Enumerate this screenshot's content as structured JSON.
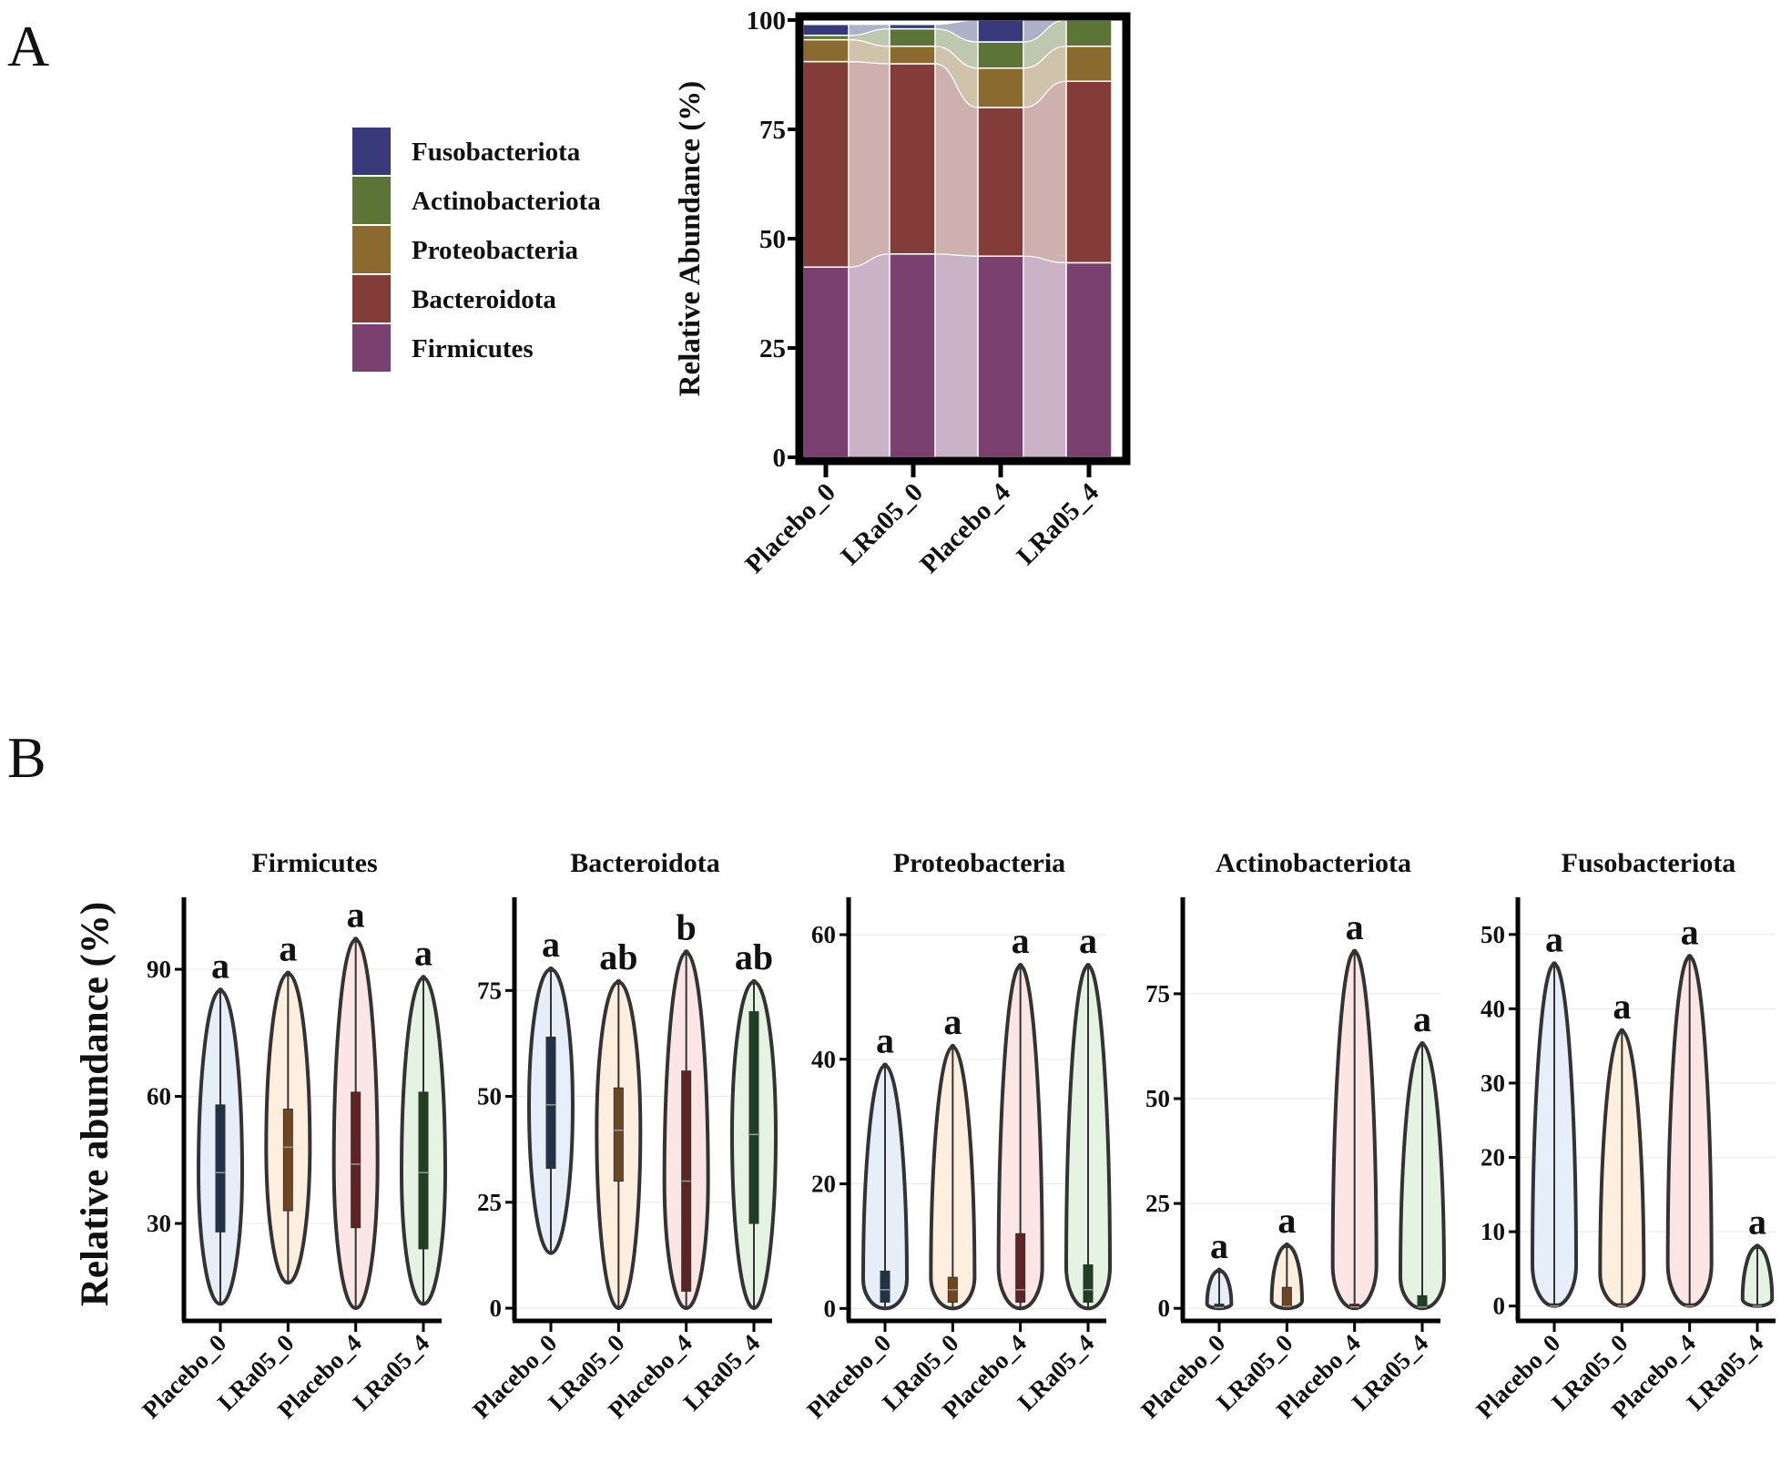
{
  "panels": {
    "a_label": "A",
    "b_label": "B"
  },
  "colors": {
    "Fusobacteriota": "#363a7a",
    "Actinobacteriota": "#5c7537",
    "Proteobacteria": "#8a6a2f",
    "Bacteroidota": "#843c38",
    "Firmicutes": "#7a4070",
    "violin_fill": [
      "#e6eef9",
      "#fdeedd",
      "#fbe5e5",
      "#e5f3e3"
    ],
    "box_fill": [
      "#1f3347",
      "#6e4720",
      "#5e2424",
      "#1f3f22"
    ]
  },
  "chart_data": [
    {
      "type": "bar",
      "stacked": true,
      "title": "",
      "ylabel": "Relative Abundance (%)",
      "xlabel": "",
      "ylim": [
        0,
        100
      ],
      "yticks": [
        "0",
        "25",
        "50",
        "75",
        "100"
      ],
      "categories": [
        "Placebo_0",
        "LRa05_0",
        "Placebo_4",
        "LRa05_4"
      ],
      "legend": [
        "Fusobacteriota",
        "Actinobacteriota",
        "Proteobacteria",
        "Bacteroidota",
        "Firmicutes"
      ],
      "legend_position": "left",
      "series": [
        {
          "name": "Firmicutes",
          "values": [
            43.5,
            46.5,
            46,
            44.5
          ]
        },
        {
          "name": "Bacteroidota",
          "values": [
            47,
            43.5,
            34,
            41.5
          ]
        },
        {
          "name": "Proteobacteria",
          "values": [
            5,
            4,
            9,
            8
          ]
        },
        {
          "name": "Actinobacteriota",
          "values": [
            1,
            4,
            6,
            6
          ]
        },
        {
          "name": "Fusobacteriota",
          "values": [
            2.5,
            1,
            5,
            0
          ]
        }
      ]
    },
    {
      "type": "violin",
      "ylabel": "Relative abundance (%)",
      "categories": [
        "Placebo_0",
        "LRa05_0",
        "Placebo_4",
        "LRa05_4"
      ],
      "facets": [
        {
          "title": "Firmicutes",
          "ylim": [
            7,
            107
          ],
          "yticks": [
            "30",
            "60",
            "90"
          ],
          "letters": [
            "a",
            "a",
            "a",
            "a"
          ],
          "groups": [
            {
              "min": 11,
              "max": 85,
              "q1": 28,
              "median": 42,
              "q3": 58
            },
            {
              "min": 16,
              "max": 89,
              "q1": 33,
              "median": 48,
              "q3": 57
            },
            {
              "min": 10,
              "max": 97,
              "q1": 29,
              "median": 44,
              "q3": 61
            },
            {
              "min": 11,
              "max": 88,
              "q1": 24,
              "median": 42,
              "q3": 61
            }
          ]
        },
        {
          "title": "Bacteroidota",
          "ylim": [
            -3,
            97
          ],
          "yticks": [
            "0",
            "25",
            "50",
            "75"
          ],
          "letters": [
            "a",
            "ab",
            "b",
            "ab"
          ],
          "groups": [
            {
              "min": 13,
              "max": 80,
              "q1": 33,
              "median": 48,
              "q3": 64
            },
            {
              "min": 0,
              "max": 77,
              "q1": 30,
              "median": 42,
              "q3": 52
            },
            {
              "min": 0,
              "max": 84,
              "q1": 4,
              "median": 30,
              "q3": 56
            },
            {
              "min": 0,
              "max": 77,
              "q1": 20,
              "median": 41,
              "q3": 70
            }
          ]
        },
        {
          "title": "Proteobacteria",
          "ylim": [
            -2,
            66
          ],
          "yticks": [
            "0",
            "20",
            "40",
            "60"
          ],
          "letters": [
            "a",
            "a",
            "a",
            "a"
          ],
          "groups": [
            {
              "min": 0,
              "max": 39,
              "q1": 1,
              "median": 3,
              "q3": 6
            },
            {
              "min": 0,
              "max": 42,
              "q1": 1,
              "median": 3,
              "q3": 5
            },
            {
              "min": 0,
              "max": 55,
              "q1": 1,
              "median": 3,
              "q3": 12
            },
            {
              "min": 0,
              "max": 55,
              "q1": 1,
              "median": 3,
              "q3": 7
            }
          ]
        },
        {
          "title": "Actinobacteriota",
          "ylim": [
            -3,
            98
          ],
          "yticks": [
            "0",
            "25",
            "50",
            "75"
          ],
          "letters": [
            "a",
            "a",
            "a",
            "a"
          ],
          "groups": [
            {
              "min": 0,
              "max": 9,
              "q1": 0,
              "median": 0.2,
              "q3": 1
            },
            {
              "min": 0,
              "max": 15,
              "q1": 0,
              "median": 0.5,
              "q3": 5
            },
            {
              "min": 0,
              "max": 85,
              "q1": 0,
              "median": 0.3,
              "q3": 1
            },
            {
              "min": 0,
              "max": 63,
              "q1": 0,
              "median": 0.3,
              "q3": 3
            }
          ]
        },
        {
          "title": "Fusobacteriota",
          "ylim": [
            -2,
            55
          ],
          "yticks": [
            "0",
            "10",
            "20",
            "30",
            "40",
            "50"
          ],
          "letters": [
            "a",
            "a",
            "a",
            "a"
          ],
          "groups": [
            {
              "min": 0,
              "max": 46,
              "q1": 0,
              "median": 0,
              "q3": 0.3
            },
            {
              "min": 0,
              "max": 37,
              "q1": 0,
              "median": 0,
              "q3": 0.3
            },
            {
              "min": 0,
              "max": 47,
              "q1": 0,
              "median": 0,
              "q3": 0.3
            },
            {
              "min": 0,
              "max": 8,
              "q1": 0,
              "median": 0,
              "q3": 0.2
            }
          ]
        }
      ]
    }
  ]
}
